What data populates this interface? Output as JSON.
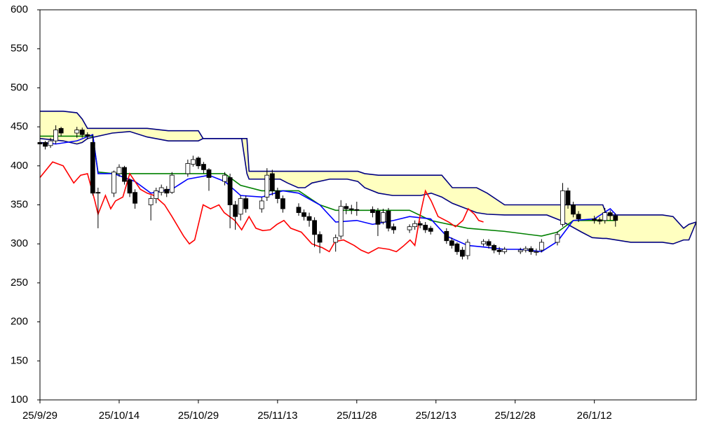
{
  "chart_data": {
    "type": "candlestick",
    "xlim": [
      0,
      124.3
    ],
    "xticks": [
      {
        "value": 0,
        "label": "25/9/29"
      },
      {
        "value": 15,
        "label": "25/10/14"
      },
      {
        "value": 30,
        "label": "25/10/29"
      },
      {
        "value": 45,
        "label": "25/11/13"
      },
      {
        "value": 60,
        "label": "25/11/28"
      },
      {
        "value": 75,
        "label": "25/12/13"
      },
      {
        "value": 90,
        "label": "25/12/28"
      },
      {
        "value": 105,
        "label": "26/1/12"
      }
    ],
    "ylim": [
      100,
      600
    ],
    "yticks": [
      100,
      150,
      200,
      250,
      300,
      350,
      400,
      450,
      500,
      550,
      600
    ],
    "grid": false,
    "up_color": "#ffffff",
    "down_color": "#000000",
    "cloud_color": "#ffffc0",
    "x": [
      0,
      1,
      2,
      3,
      4,
      7,
      8,
      9,
      10,
      11,
      14,
      15,
      16,
      17,
      18,
      21,
      22,
      23,
      24,
      25,
      28,
      29,
      30,
      31,
      32,
      35,
      36,
      37,
      38,
      39,
      42,
      43,
      44,
      45,
      46,
      49,
      50,
      51,
      52,
      53,
      56,
      57,
      58,
      59,
      60,
      63,
      64,
      65,
      66,
      67,
      70,
      71,
      72,
      73,
      74,
      77,
      78,
      79,
      80,
      81,
      84,
      85,
      86,
      87,
      88,
      91,
      92,
      93,
      94,
      95,
      98,
      99,
      100,
      101,
      102,
      105,
      106,
      107,
      108,
      109
    ],
    "open": [
      430,
      430,
      426,
      432,
      448,
      442,
      446,
      440,
      430,
      366,
      365,
      390,
      398,
      382,
      366,
      350,
      358,
      366,
      370,
      366,
      390,
      402,
      410,
      402,
      395,
      380,
      385,
      350,
      338,
      358,
      345,
      360,
      390,
      368,
      358,
      347,
      340,
      335,
      330,
      312,
      302,
      310,
      348,
      345,
      344,
      344,
      342,
      328,
      342,
      322,
      318,
      322,
      326,
      324,
      320,
      316,
      304,
      300,
      292,
      285,
      300,
      303,
      298,
      292,
      290,
      290,
      292,
      294,
      290,
      292,
      302,
      325,
      368,
      350,
      338,
      332,
      331,
      330,
      340,
      336
    ],
    "high": [
      433,
      432,
      436,
      452,
      450,
      450,
      449,
      443,
      440,
      372,
      394,
      402,
      400,
      384,
      370,
      362,
      372,
      376,
      374,
      392,
      408,
      413,
      412,
      405,
      397,
      392,
      390,
      355,
      362,
      362,
      360,
      397,
      395,
      372,
      362,
      352,
      344,
      340,
      334,
      316,
      312,
      356,
      352,
      350,
      354,
      348,
      346,
      345,
      346,
      326,
      325,
      330,
      329,
      328,
      323,
      320,
      308,
      302,
      296,
      306,
      306,
      306,
      300,
      296,
      296,
      295,
      297,
      297,
      294,
      306,
      316,
      378,
      372,
      354,
      342,
      336,
      334,
      346,
      343,
      339
    ],
    "low": [
      420,
      421,
      423,
      428,
      438,
      436,
      436,
      434,
      362,
      320,
      360,
      386,
      376,
      360,
      345,
      330,
      352,
      362,
      360,
      364,
      386,
      399,
      396,
      390,
      368,
      375,
      320,
      318,
      330,
      340,
      340,
      355,
      362,
      352,
      340,
      336,
      330,
      322,
      296,
      288,
      290,
      306,
      338,
      338,
      336,
      334,
      310,
      325,
      316,
      313,
      314,
      318,
      320,
      314,
      312,
      300,
      294,
      286,
      280,
      280,
      297,
      294,
      288,
      286,
      287,
      287,
      289,
      286,
      285,
      289,
      298,
      322,
      345,
      334,
      328,
      326,
      325,
      326,
      330,
      322
    ],
    "close": [
      428,
      425,
      432,
      446,
      442,
      446,
      440,
      438,
      365,
      365,
      392,
      398,
      380,
      365,
      352,
      358,
      368,
      372,
      365,
      388,
      403,
      408,
      400,
      395,
      385,
      388,
      350,
      335,
      358,
      345,
      355,
      388,
      368,
      358,
      345,
      340,
      335,
      330,
      312,
      302,
      308,
      348,
      345,
      344,
      343,
      340,
      325,
      340,
      320,
      318,
      322,
      326,
      324,
      318,
      316,
      304,
      298,
      290,
      284,
      302,
      303,
      298,
      292,
      290,
      293,
      292,
      294,
      290,
      290,
      302,
      312,
      368,
      350,
      338,
      332,
      330,
      329,
      340,
      336,
      330
    ],
    "series": [
      {
        "color": "#000080",
        "x": [
          0,
          4.4,
          7,
          8,
          9,
          13.7,
          17,
          20.3,
          24.3,
          30,
          30.9,
          38.2,
          39.2,
          39.6,
          45.5,
          46.9,
          48.9,
          50.2,
          51.5,
          54.9,
          58.2,
          60.2,
          61.5,
          64.1,
          66.8,
          72.1,
          74.1,
          76.1,
          78.1,
          82.7,
          84.7,
          88,
          96,
          98.6,
          102.6,
          104.6,
          106.6,
          107.3,
          111.9,
          117.9,
          119.9,
          121.9,
          122.9,
          124.3
        ],
        "values": [
          435,
          432,
          428,
          430,
          435,
          442,
          444,
          437,
          432,
          432,
          435,
          435,
          390,
          383,
          383,
          378,
          372,
          372,
          378,
          383,
          383,
          380,
          372,
          365,
          362,
          362,
          365,
          360,
          352,
          340,
          338,
          337,
          337,
          330,
          315,
          308,
          307,
          307,
          302,
          302,
          300,
          305,
          305,
          328
        ]
      },
      {
        "color": "#000080",
        "x": [
          0,
          4.4,
          7,
          8,
          9,
          13.7,
          17,
          20.3,
          24.3,
          30,
          30.9,
          38.2,
          39.2,
          39.6,
          45.5,
          46.9,
          48.9,
          50.2,
          51.5,
          54.9,
          58.2,
          60.2,
          61.5,
          64.1,
          66.8,
          72.1,
          74.1,
          76.1,
          78.1,
          82.7,
          84.7,
          88,
          96,
          98.6,
          102.6,
          104.6,
          106.6,
          107.3,
          111.9,
          117.9,
          119.9,
          121.9,
          122.9,
          124.3
        ],
        "values": [
          470,
          470,
          468,
          460,
          448,
          448,
          448,
          448,
          445,
          445,
          435,
          435,
          435,
          393,
          393,
          393,
          393,
          393,
          393,
          393,
          393,
          393,
          390,
          388,
          388,
          388,
          388,
          388,
          372,
          372,
          365,
          350,
          350,
          350,
          350,
          350,
          350,
          337,
          337,
          337,
          335,
          320,
          325,
          328
        ]
      },
      {
        "color": "#008000",
        "x": [
          0,
          10,
          11,
          14,
          35,
          38,
          42,
          49,
          53,
          56,
          70,
          74,
          81,
          88,
          95,
          98,
          101,
          109
        ],
        "values": [
          438,
          438,
          392,
          390,
          390,
          375,
          368,
          368,
          350,
          343,
          343,
          330,
          320,
          316,
          310,
          315,
          330,
          330
        ]
      },
      {
        "color": "#0000ff",
        "x": [
          0,
          3,
          7,
          10,
          11,
          14,
          18,
          21,
          25,
          28,
          32,
          35,
          38,
          42,
          46,
          49,
          53,
          56,
          60,
          63,
          67,
          70,
          74,
          77,
          81,
          84,
          88,
          91,
          95,
          98,
          101,
          105,
          108,
          109
        ],
        "values": [
          430,
          428,
          432,
          440,
          390,
          390,
          380,
          365,
          370,
          383,
          388,
          380,
          362,
          360,
          368,
          365,
          350,
          328,
          330,
          325,
          330,
          335,
          332,
          310,
          298,
          296,
          293,
          293,
          290,
          303,
          330,
          332,
          345,
          338
        ]
      },
      {
        "color": "#ff0000",
        "x": [
          0,
          2.4,
          4.4,
          6.4,
          7.7,
          9,
          10.4,
          11,
          12.4,
          13.4,
          14.3,
          15.7,
          17,
          19,
          20.3,
          21.6,
          23.6,
          25,
          27.2,
          28.3,
          29.3,
          30.9,
          32.3,
          33.9,
          34.9,
          36.9,
          38.2,
          39.6,
          40.9,
          42.2,
          43.6,
          44.9,
          46.2,
          47.5,
          49.5,
          51.5,
          53.5,
          54.8,
          55.9,
          57.5,
          59.5,
          60.8,
          62.2,
          64.1,
          66.1,
          67.5,
          68.8,
          70.1,
          71,
          72.1,
          73,
          74.1,
          75.4,
          77.4,
          78.7,
          80.1,
          81.1,
          82.3,
          83.1,
          84
        ],
        "values": [
          385,
          405,
          400,
          378,
          388,
          390,
          355,
          338,
          362,
          345,
          355,
          360,
          390,
          370,
          365,
          362,
          350,
          335,
          310,
          300,
          305,
          350,
          345,
          350,
          340,
          330,
          318,
          335,
          320,
          317,
          318,
          325,
          330,
          320,
          315,
          300,
          295,
          290,
          303,
          305,
          298,
          292,
          288,
          295,
          293,
          290,
          297,
          305,
          298,
          340,
          368,
          355,
          335,
          328,
          322,
          330,
          345,
          338,
          330,
          328
        ]
      }
    ]
  }
}
